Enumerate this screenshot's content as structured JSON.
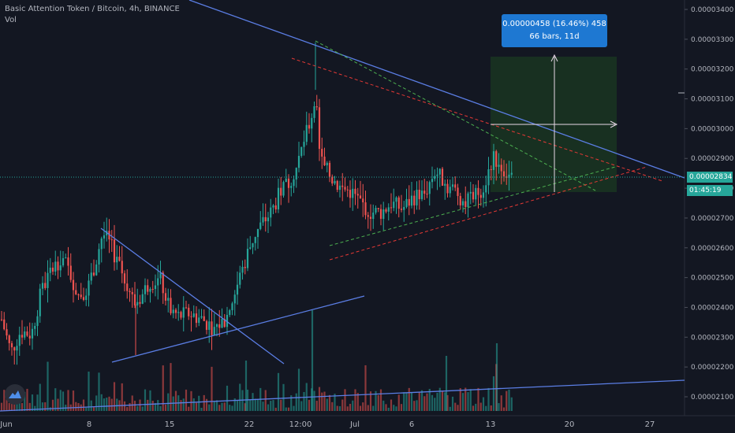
{
  "legend": {
    "title": "Basic Attention Token / Bitcoin, 4h, BINANCE",
    "volume_label": "Vol"
  },
  "measure_box": {
    "line1": "0.00000458 (16.46%) 458",
    "line2": "66 bars, 11d"
  },
  "current_price": {
    "value": "0.00002834",
    "countdown": "01:45:19",
    "color": "#26a69a"
  },
  "colors": {
    "background": "#131722",
    "up": "#26a69a",
    "down": "#ef5350",
    "trendline": "#5b7ee5",
    "green_dash": "#4caf50",
    "red_dash": "#e53935",
    "axis_text": "#b2b5be",
    "measure_bg": "#1e78d2"
  },
  "chart_data": {
    "type": "candlestick",
    "symbol": "Basic Attention Token / Bitcoin",
    "interval": "4h",
    "exchange": "BINANCE",
    "y_ticks": [
      "0.00003400",
      "0.00003300",
      "0.00003200",
      "0.00003100",
      "0.00003000",
      "0.00002900",
      "0.00002800",
      "0.00002700",
      "0.00002600",
      "0.00002500",
      "0.00002400",
      "0.00002300",
      "0.00002200",
      "0.00002100"
    ],
    "ylim": [
      2.058e-05,
      3.44e-05
    ],
    "x_ticks": [
      "Jun",
      "8",
      "15",
      "22",
      "12:00",
      "Jul",
      "6",
      "13",
      "20",
      "27"
    ],
    "series_close_approx": [
      [
        "2020-06-01",
        2.24e-05
      ],
      [
        "2020-06-04",
        2.42e-05
      ],
      [
        "2020-06-07",
        2.53e-05
      ],
      [
        "2020-06-09",
        2.66e-05
      ],
      [
        "2020-06-11",
        2.52e-05
      ],
      [
        "2020-06-13",
        2.4e-05
      ],
      [
        "2020-06-15",
        2.47e-05
      ],
      [
        "2020-06-17",
        2.38e-05
      ],
      [
        "2020-06-20",
        2.32e-05
      ],
      [
        "2020-06-22",
        2.48e-05
      ],
      [
        "2020-06-24",
        2.65e-05
      ],
      [
        "2020-06-26",
        2.88e-05
      ],
      [
        "2020-06-27",
        3.25e-05
      ],
      [
        "2020-06-29",
        2.85e-05
      ],
      [
        "2020-07-01",
        2.75e-05
      ],
      [
        "2020-07-04",
        2.72e-05
      ],
      [
        "2020-07-07",
        2.82e-05
      ],
      [
        "2020-07-10",
        2.76e-05
      ],
      [
        "2020-07-13",
        2.9e-05
      ],
      [
        "2020-07-14",
        2.834e-05
      ]
    ]
  }
}
